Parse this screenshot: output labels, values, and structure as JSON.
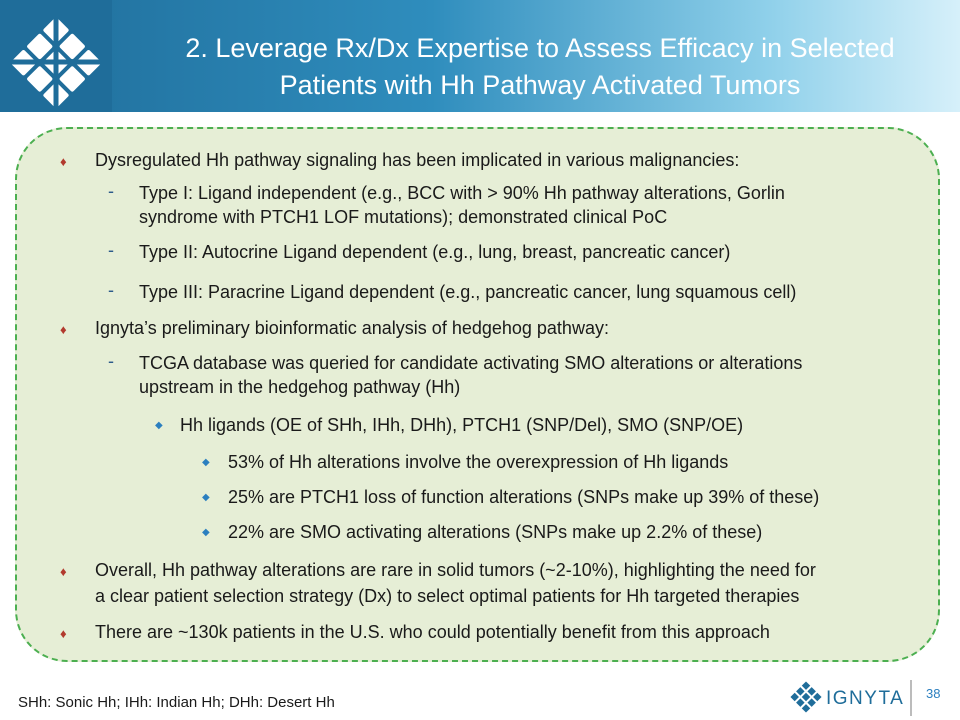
{
  "header": {
    "title_line1": "2. Leverage Rx/Dx Expertise to Assess Efficacy in Selected",
    "title_line2": "Patients with Hh Pathway Activated Tumors",
    "logo_icon": "ignyta-lattice-logo"
  },
  "content": {
    "b1": "Dysregulated Hh pathway signaling has been implicated in various malignancies:",
    "b1_1a": "Type I: Ligand independent (e.g., BCC with > 90% Hh pathway alterations, Gorlin",
    "b1_1b": "syndrome with PTCH1 LOF mutations); demonstrated clinical PoC",
    "b1_2": "Type II: Autocrine Ligand dependent (e.g., lung, breast, pancreatic cancer)",
    "b1_3": "Type III: Paracrine Ligand dependent (e.g., pancreatic cancer, lung squamous cell)",
    "b2": "Ignyta’s preliminary bioinformatic analysis of hedgehog pathway:",
    "b2_1a": "TCGA database was queried for candidate activating SMO alterations or alterations",
    "b2_1b": "upstream in the hedgehog pathway (Hh)",
    "b2_1_1": "Hh ligands (OE of SHh, IHh, DHh), PTCH1 (SNP/Del), SMO (SNP/OE)",
    "b2_1_1_1": "53% of Hh alterations involve the overexpression of Hh ligands",
    "b2_1_1_2": "25% are PTCH1 loss of function alterations (SNPs make up 39% of these)",
    "b2_1_1_3": "22% are SMO activating alterations (SNPs make up 2.2% of these)",
    "b3a": "Overall, Hh pathway alterations are rare in solid tumors (~2-10%), highlighting the need for",
    "b3b": "a clear patient selection strategy (Dx) to select optimal patients for Hh targeted therapies",
    "b4": "There are ~130k patients in the U.S. who could potentially benefit from this approach"
  },
  "markers": {
    "level1": "♦",
    "level2": "-",
    "level3": "◆"
  },
  "footer": {
    "footnote": "SHh: Sonic Hh; IHh: Indian Hh; DHh: Desert Hh",
    "brand": "IGNYTA",
    "page_number": "38"
  },
  "colors": {
    "header_start": "#1f6d9a",
    "header_end": "#d6f0fa",
    "panel_fill": "#e6eed6",
    "panel_border": "#4caf50",
    "bullet_red": "#b23a2e",
    "accent_blue": "#2b7fbf"
  }
}
